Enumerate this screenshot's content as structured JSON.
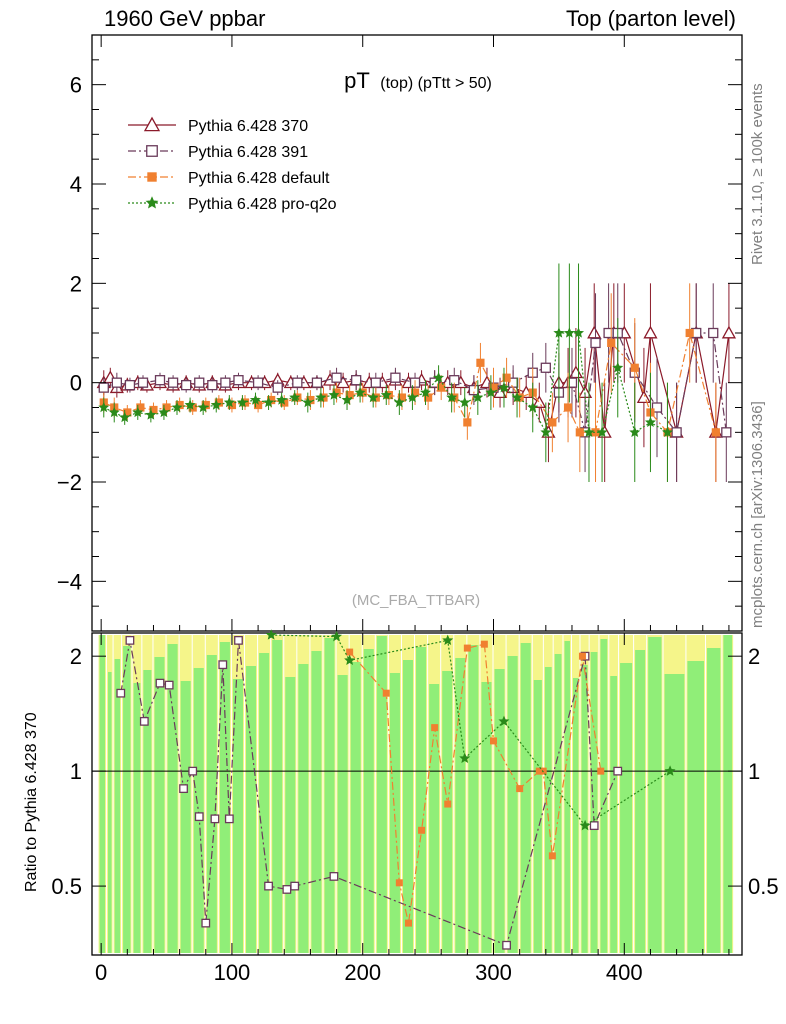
{
  "header": {
    "left": "1960 GeV ppbar",
    "right": "Top (parton level)"
  },
  "side_texts": {
    "rivet": "Rivet 3.1.10, ≥ 100k events",
    "mcplots": "mcplots.cern.ch [arXiv:1306.3436]"
  },
  "chart_data": {
    "type": "scatter",
    "title_main": "pT",
    "title_sub": "(top) (pTtt > 50)",
    "analysis_label": "(MC_FBA_TTBAR)",
    "ratio_ylabel": "Ratio to Pythia 6.428 370",
    "xlim": [
      -7,
      490
    ],
    "ylim_main": [
      -5,
      7
    ],
    "ylim_ratio": [
      0.33,
      2.3
    ],
    "x_ticks": [
      0,
      100,
      200,
      300,
      400
    ],
    "y_ticks_main": [
      -4,
      -2,
      0,
      2,
      4,
      6
    ],
    "y_ticks_ratio": [
      0.5,
      1,
      2
    ],
    "legend_position": "top-left",
    "series": [
      {
        "name": "Pythia 6.428 370",
        "color": "#8b1a2a",
        "marker": "open-triangle",
        "line": "solid",
        "points": [
          [
            2,
            0.0,
            0.25
          ],
          [
            7,
            0.1,
            0.2
          ],
          [
            12,
            -0.1,
            0.2
          ],
          [
            20,
            -0.05,
            0.15
          ],
          [
            28,
            0.0,
            0.15
          ],
          [
            35,
            -0.05,
            0.15
          ],
          [
            45,
            0.0,
            0.15
          ],
          [
            55,
            -0.05,
            0.15
          ],
          [
            65,
            0.0,
            0.15
          ],
          [
            75,
            -0.05,
            0.15
          ],
          [
            85,
            0.0,
            0.15
          ],
          [
            95,
            -0.05,
            0.15
          ],
          [
            105,
            0.0,
            0.15
          ],
          [
            115,
            0.0,
            0.15
          ],
          [
            125,
            0.0,
            0.15
          ],
          [
            135,
            0.05,
            0.15
          ],
          [
            145,
            0.0,
            0.15
          ],
          [
            155,
            0.0,
            0.15
          ],
          [
            165,
            0.0,
            0.15
          ],
          [
            175,
            0.05,
            0.2
          ],
          [
            185,
            0.0,
            0.2
          ],
          [
            195,
            0.05,
            0.2
          ],
          [
            205,
            0.0,
            0.2
          ],
          [
            215,
            0.0,
            0.2
          ],
          [
            225,
            0.05,
            0.2
          ],
          [
            235,
            0.0,
            0.2
          ],
          [
            245,
            0.05,
            0.2
          ],
          [
            255,
            0.0,
            0.25
          ],
          [
            265,
            0.0,
            0.25
          ],
          [
            275,
            0.0,
            0.25
          ],
          [
            285,
            -0.1,
            0.25
          ],
          [
            295,
            0.0,
            0.3
          ],
          [
            305,
            -0.2,
            0.3
          ],
          [
            315,
            -0.1,
            0.35
          ],
          [
            325,
            -0.2,
            0.35
          ],
          [
            335,
            -0.4,
            0.4
          ],
          [
            342,
            -1.0,
            0.6
          ],
          [
            350,
            0.0,
            0.6
          ],
          [
            357,
            0.0,
            0.7
          ],
          [
            363,
            0.2,
            0.9
          ],
          [
            370,
            -0.2,
            0.9
          ],
          [
            377,
            1.0,
            1.0
          ],
          [
            385,
            -1.0,
            1.0
          ],
          [
            392,
            1.0,
            1.0
          ],
          [
            400,
            1.0,
            1.0
          ],
          [
            415,
            -0.3,
            1.0
          ],
          [
            420,
            1.0,
            1.0
          ],
          [
            440,
            -1.0,
            1.0
          ],
          [
            455,
            1.0,
            1.0
          ],
          [
            470,
            -1.0,
            1.0
          ],
          [
            480,
            1.0,
            1.0
          ]
        ]
      },
      {
        "name": "Pythia 6.428 391",
        "color": "#6a3a5a",
        "marker": "open-square",
        "line": "dashdot",
        "points": [
          [
            2,
            -0.1,
            0.2
          ],
          [
            12,
            0.0,
            0.2
          ],
          [
            22,
            -0.05,
            0.15
          ],
          [
            32,
            0.0,
            0.15
          ],
          [
            45,
            0.05,
            0.15
          ],
          [
            55,
            0.0,
            0.15
          ],
          [
            65,
            -0.05,
            0.15
          ],
          [
            75,
            0.0,
            0.15
          ],
          [
            85,
            -0.05,
            0.15
          ],
          [
            95,
            0.0,
            0.15
          ],
          [
            105,
            0.05,
            0.15
          ],
          [
            120,
            0.0,
            0.15
          ],
          [
            135,
            -0.1,
            0.15
          ],
          [
            150,
            0.0,
            0.15
          ],
          [
            165,
            0.0,
            0.15
          ],
          [
            180,
            0.1,
            0.2
          ],
          [
            195,
            0.05,
            0.2
          ],
          [
            210,
            0.0,
            0.2
          ],
          [
            225,
            0.1,
            0.2
          ],
          [
            240,
            0.0,
            0.2
          ],
          [
            255,
            0.0,
            0.25
          ],
          [
            270,
            0.05,
            0.25
          ],
          [
            285,
            -0.15,
            0.3
          ],
          [
            300,
            -0.1,
            0.3
          ],
          [
            315,
            0.0,
            0.35
          ],
          [
            330,
            0.2,
            0.4
          ],
          [
            340,
            0.3,
            0.5
          ],
          [
            350,
            -0.2,
            0.6
          ],
          [
            360,
            0.0,
            0.7
          ],
          [
            370,
            -1.0,
            0.8
          ],
          [
            378,
            0.8,
            1.0
          ],
          [
            388,
            1.0,
            1.0
          ],
          [
            395,
            1.0,
            1.0
          ],
          [
            408,
            0.2,
            1.0
          ],
          [
            425,
            -0.5,
            1.0
          ],
          [
            440,
            -1.0,
            1.0
          ],
          [
            455,
            1.0,
            1.0
          ],
          [
            468,
            1.0,
            1.0
          ],
          [
            478,
            -1.0,
            1.0
          ]
        ]
      },
      {
        "name": "Pythia 6.428 default",
        "color": "#f08030",
        "marker": "filled-square",
        "line": "dashdot",
        "points": [
          [
            2,
            -0.4,
            0.2
          ],
          [
            10,
            -0.5,
            0.2
          ],
          [
            20,
            -0.6,
            0.15
          ],
          [
            30,
            -0.5,
            0.15
          ],
          [
            40,
            -0.55,
            0.15
          ],
          [
            50,
            -0.5,
            0.15
          ],
          [
            60,
            -0.45,
            0.15
          ],
          [
            70,
            -0.5,
            0.15
          ],
          [
            80,
            -0.45,
            0.15
          ],
          [
            90,
            -0.4,
            0.15
          ],
          [
            100,
            -0.45,
            0.15
          ],
          [
            110,
            -0.4,
            0.15
          ],
          [
            120,
            -0.45,
            0.15
          ],
          [
            130,
            -0.35,
            0.15
          ],
          [
            140,
            -0.4,
            0.15
          ],
          [
            150,
            -0.3,
            0.15
          ],
          [
            160,
            -0.35,
            0.2
          ],
          [
            170,
            -0.3,
            0.2
          ],
          [
            180,
            -0.2,
            0.2
          ],
          [
            190,
            -0.25,
            0.2
          ],
          [
            200,
            -0.2,
            0.2
          ],
          [
            210,
            -0.3,
            0.2
          ],
          [
            220,
            -0.25,
            0.2
          ],
          [
            230,
            -0.3,
            0.25
          ],
          [
            240,
            -0.2,
            0.25
          ],
          [
            250,
            -0.3,
            0.25
          ],
          [
            260,
            -0.1,
            0.25
          ],
          [
            270,
            -0.3,
            0.3
          ],
          [
            280,
            -0.8,
            0.35
          ],
          [
            290,
            0.4,
            0.4
          ],
          [
            300,
            -0.1,
            0.4
          ],
          [
            310,
            0.1,
            0.4
          ],
          [
            320,
            -0.3,
            0.4
          ],
          [
            330,
            -0.2,
            0.5
          ],
          [
            345,
            -0.8,
            0.6
          ],
          [
            357,
            -0.5,
            0.7
          ],
          [
            366,
            -1.0,
            0.8
          ],
          [
            378,
            -1.0,
            1.0
          ],
          [
            390,
            0.8,
            1.0
          ],
          [
            408,
            0.3,
            1.0
          ],
          [
            420,
            -0.6,
            1.0
          ],
          [
            433,
            -1.0,
            1.0
          ],
          [
            450,
            1.0,
            1.0
          ],
          [
            470,
            -1.0,
            1.0
          ]
        ]
      },
      {
        "name": "Pythia 6.428 pro-q2o",
        "color": "#2a8a1a",
        "marker": "star",
        "line": "dotted",
        "points": [
          [
            2,
            -0.5,
            0.2
          ],
          [
            10,
            -0.6,
            0.2
          ],
          [
            18,
            -0.7,
            0.15
          ],
          [
            28,
            -0.6,
            0.15
          ],
          [
            38,
            -0.65,
            0.15
          ],
          [
            48,
            -0.6,
            0.15
          ],
          [
            58,
            -0.5,
            0.15
          ],
          [
            68,
            -0.45,
            0.15
          ],
          [
            78,
            -0.5,
            0.15
          ],
          [
            88,
            -0.45,
            0.15
          ],
          [
            98,
            -0.4,
            0.15
          ],
          [
            108,
            -0.4,
            0.15
          ],
          [
            118,
            -0.35,
            0.15
          ],
          [
            128,
            -0.4,
            0.15
          ],
          [
            138,
            -0.35,
            0.15
          ],
          [
            148,
            -0.3,
            0.15
          ],
          [
            158,
            -0.4,
            0.2
          ],
          [
            168,
            -0.3,
            0.2
          ],
          [
            178,
            -0.25,
            0.2
          ],
          [
            188,
            -0.35,
            0.2
          ],
          [
            198,
            -0.2,
            0.2
          ],
          [
            208,
            -0.3,
            0.2
          ],
          [
            218,
            -0.25,
            0.2
          ],
          [
            228,
            -0.4,
            0.25
          ],
          [
            238,
            -0.3,
            0.25
          ],
          [
            248,
            -0.2,
            0.25
          ],
          [
            258,
            0.1,
            0.25
          ],
          [
            268,
            -0.3,
            0.3
          ],
          [
            278,
            -0.4,
            0.3
          ],
          [
            288,
            -0.3,
            0.35
          ],
          [
            298,
            -0.2,
            0.35
          ],
          [
            308,
            -0.1,
            0.4
          ],
          [
            318,
            -0.3,
            0.4
          ],
          [
            330,
            -0.5,
            0.5
          ],
          [
            340,
            -1.0,
            0.6
          ],
          [
            350,
            1.0,
            1.4
          ],
          [
            358,
            1.0,
            1.4
          ],
          [
            365,
            1.0,
            1.4
          ],
          [
            373,
            -1.0,
            1.0
          ],
          [
            383,
            -1.0,
            1.0
          ],
          [
            395,
            0.3,
            1.0
          ],
          [
            408,
            -1.0,
            1.0
          ],
          [
            420,
            -0.8,
            1.0
          ],
          [
            433,
            -1.0,
            1.0
          ]
        ]
      }
    ],
    "ratio_series": [
      {
        "name": "Pythia 6.428 391",
        "points": [
          [
            15,
            1.6
          ],
          [
            22,
            2.2
          ],
          [
            33,
            1.35
          ],
          [
            45,
            1.7
          ],
          [
            52,
            1.68
          ],
          [
            63,
            0.9
          ],
          [
            70,
            1.0
          ],
          [
            75,
            0.76
          ],
          [
            80,
            0.4
          ],
          [
            87,
            0.75
          ],
          [
            93,
            1.9
          ],
          [
            98,
            0.75
          ],
          [
            105,
            2.2
          ],
          [
            128,
            0.5
          ],
          [
            142,
            0.49
          ],
          [
            148,
            0.5
          ],
          [
            178,
            0.53
          ],
          [
            310,
            0.35
          ],
          [
            370,
            2.0
          ],
          [
            377,
            0.72
          ],
          [
            395,
            1.0
          ]
        ]
      },
      {
        "name": "Pythia 6.428 default",
        "points": [
          [
            190,
            2.05
          ],
          [
            218,
            1.6
          ],
          [
            228,
            0.51
          ],
          [
            235,
            0.4
          ],
          [
            245,
            0.7
          ],
          [
            255,
            1.3
          ],
          [
            265,
            0.82
          ],
          [
            280,
            2.1
          ],
          [
            293,
            2.15
          ],
          [
            300,
            1.2
          ],
          [
            320,
            0.9
          ],
          [
            335,
            1.0
          ],
          [
            338,
            1.0
          ],
          [
            345,
            0.6
          ],
          [
            368,
            2.0
          ],
          [
            382,
            1.0
          ]
        ]
      },
      {
        "name": "Pythia 6.428 pro-q2o",
        "points": [
          [
            130,
            2.3
          ],
          [
            180,
            2.25
          ],
          [
            190,
            1.95
          ],
          [
            265,
            2.2
          ],
          [
            278,
            1.08
          ],
          [
            308,
            1.35
          ],
          [
            370,
            0.72
          ],
          [
            435,
            1.0
          ]
        ]
      }
    ]
  }
}
